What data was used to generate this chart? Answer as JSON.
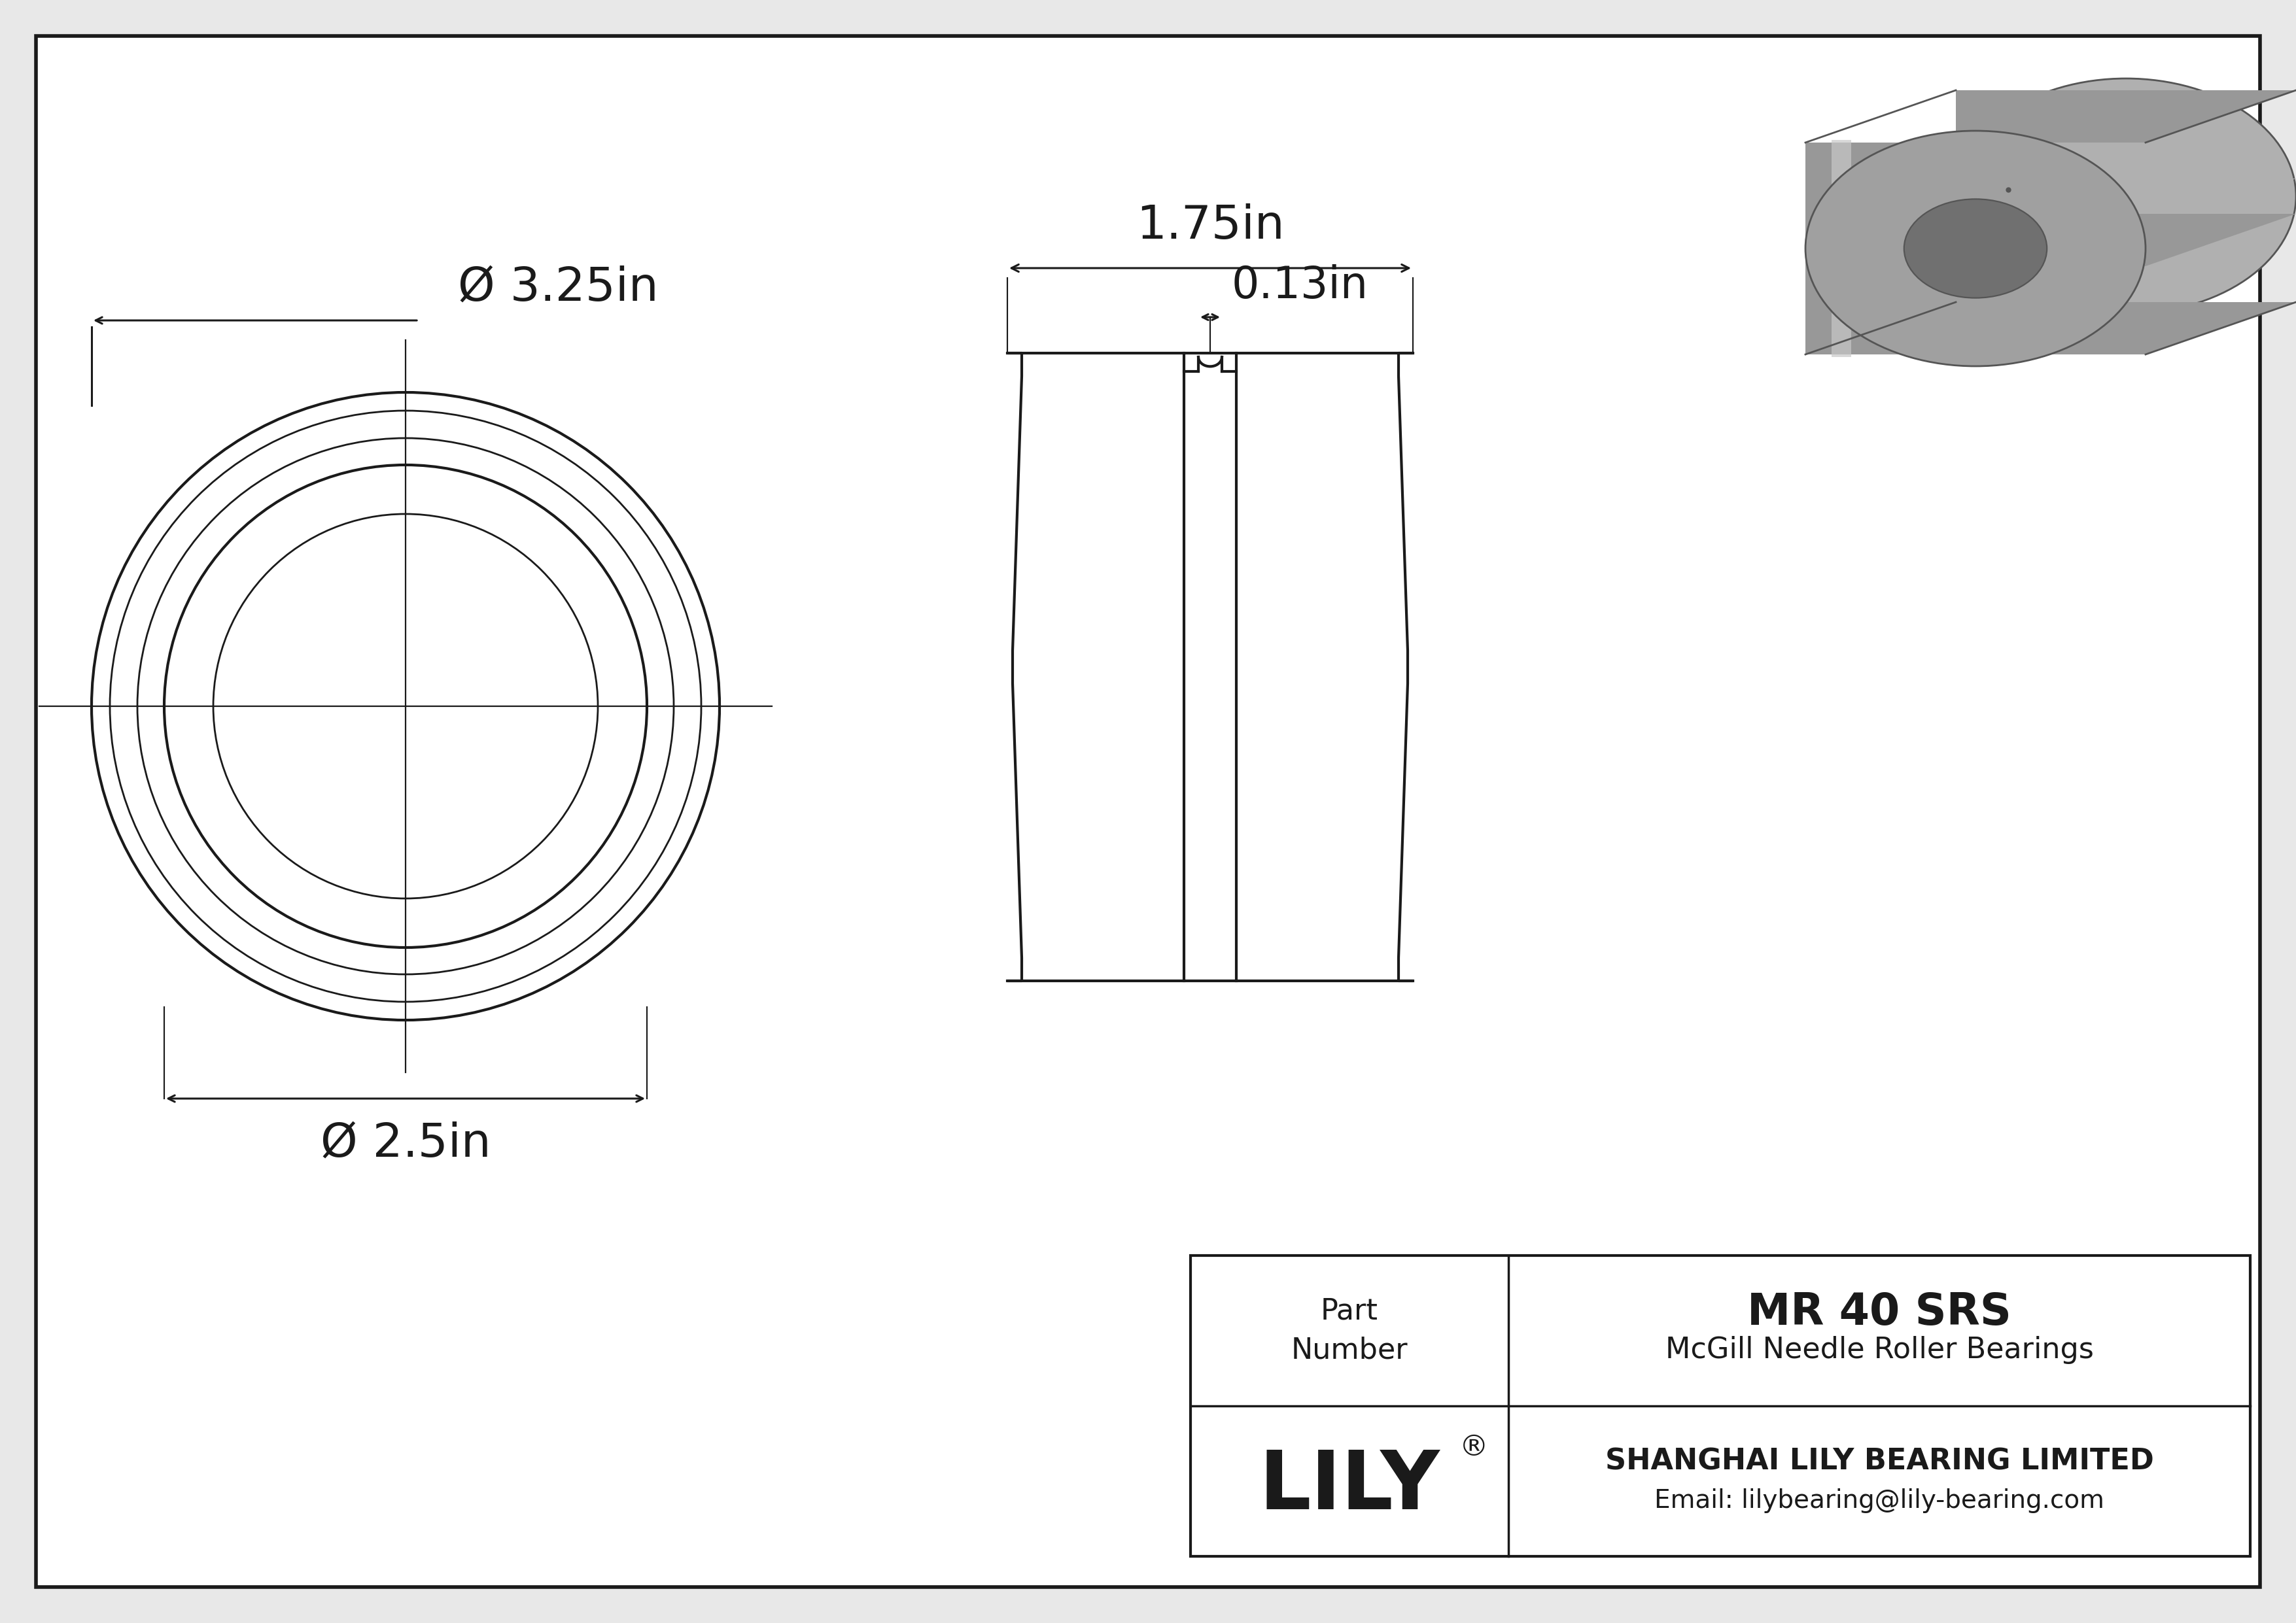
{
  "bg_color": "#e8e8e8",
  "paper_color": "#ffffff",
  "line_color": "#1a1a1a",
  "title": "MR 40 SRS",
  "subtitle": "McGill Needle Roller Bearings",
  "company": "SHANGHAI LILY BEARING LIMITED",
  "email": "Email: lilybearing@lily-bearing.com",
  "logo": "LILY",
  "logo_reg": "®",
  "part_label": "Part\nNumber",
  "outer_dia_label": "Ø 3.25in",
  "inner_dia_label": "Ø 2.5in",
  "width_label": "1.75in",
  "groove_label": "0.13in"
}
